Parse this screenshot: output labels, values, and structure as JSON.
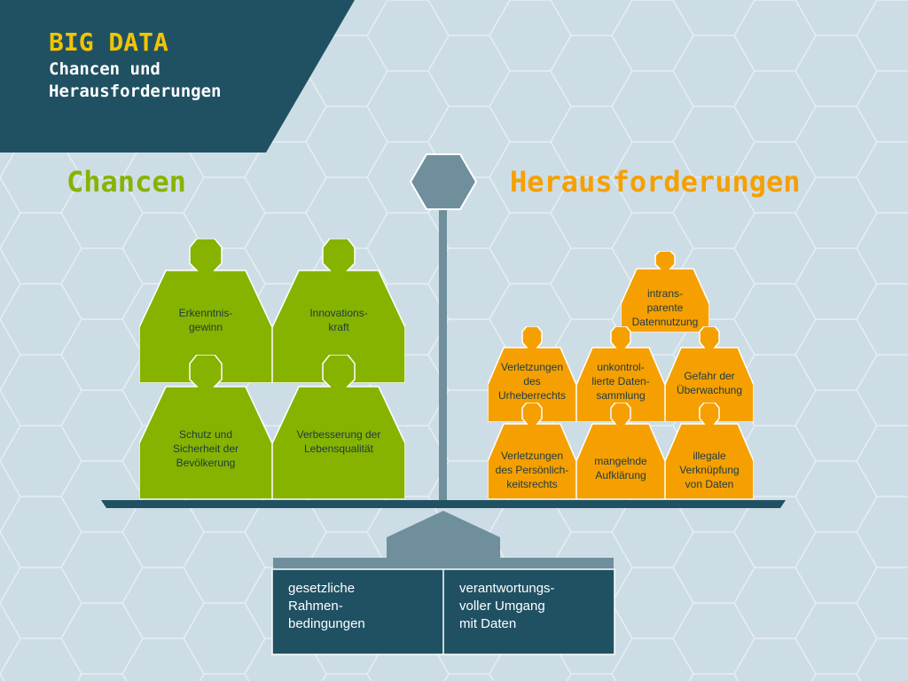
{
  "header": {
    "title": "BIG DATA",
    "subtitle": "Chancen und Herausforderungen"
  },
  "colors": {
    "background": "#cddde6",
    "banner": "#1f5163",
    "title_yellow": "#f2c400",
    "green": "#86b300",
    "orange": "#f5a000",
    "pole_gray": "#6f8f9c"
  },
  "sections": {
    "left_heading": "Chancen",
    "right_heading": "Herausforderungen"
  },
  "chancen": [
    "Erkenntnis-\ngewinn",
    "Innovations-\nkraft",
    "Schutz und\nSicherheit der\nBevölkerung",
    "Verbesserung der\nLebensqualität"
  ],
  "herausforderungen": [
    "intrans-\nparente\nDatennutzung",
    "Verletzungen\ndes\nUrheberrechts",
    "unkontrol-\nlierte Daten-\nsammlung",
    "Gefahr der\nÜberwachung",
    "Verletzungen\ndes Persönlich-\nkeitsrechts",
    "mangelnde\nAufklärung",
    "illegale\nVerknüpfung\nvon Daten"
  ],
  "base": {
    "left": "gesetzliche\nRahmen-\nbedingungen",
    "right": "verantwortungs-\nvoller Umgang\nmit Daten"
  }
}
